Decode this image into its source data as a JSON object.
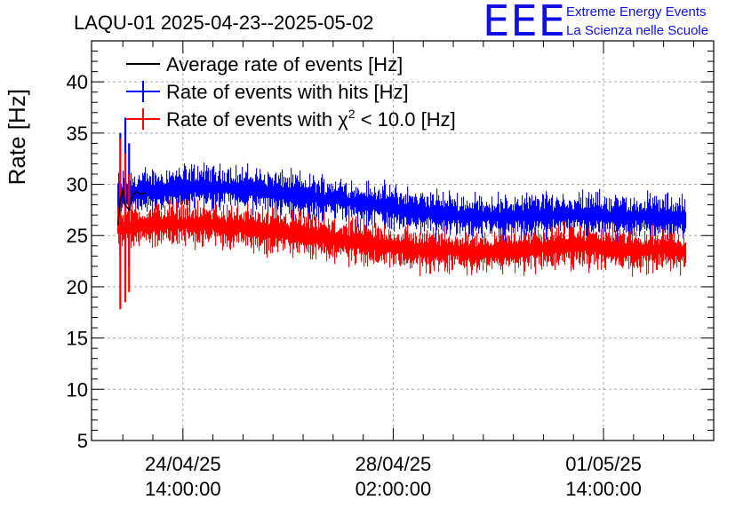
{
  "chart_data": {
    "type": "line",
    "title": "LAQU-01 2025-04-23--2025-05-02",
    "ylabel": "Rate [Hz]",
    "xlabel": "",
    "ylim": [
      5,
      44
    ],
    "yticks": [
      5,
      10,
      15,
      20,
      25,
      30,
      35,
      40
    ],
    "xlim": [
      "2025-04-23T01:30:00",
      "2025-05-03T10:00:00"
    ],
    "xticks": [
      {
        "x": "2025-04-24T14:00:00",
        "date": "24/04/25",
        "time": "14:00:00"
      },
      {
        "x": "2025-04-28T02:00:00",
        "date": "28/04/25",
        "time": "02:00:00"
      },
      {
        "x": "2025-05-01T14:00:00",
        "date": "01/05/25",
        "time": "14:00:00"
      }
    ],
    "grid": true,
    "legend_position": "top-left",
    "logo": {
      "mark": "EEE",
      "line1": "Extreme Energy Events",
      "line2": "La Scienza nelle Scuole"
    },
    "series": [
      {
        "name": "Average rate of events [Hz]",
        "color": "#000000",
        "x": [
          "2025-04-23T12:00:00",
          "2025-04-23T13:00:00",
          "2025-04-23T14:00:00",
          "2025-04-23T15:00:00",
          "2025-04-23T16:30:00",
          "2025-04-23T18:00:00",
          "2025-04-23T19:30:00",
          "2025-04-23T21:00:00",
          "2025-04-23T23:00:00"
        ],
        "values": [
          26,
          28.5,
          29.5,
          28.0,
          27.5,
          29.0,
          29.3,
          29.0,
          29.2
        ]
      },
      {
        "name": "Rate of events with hits [Hz]",
        "color": "#0000ff",
        "x": [
          "2025-04-23T12:00:00",
          "2025-04-24T00:00:00",
          "2025-04-24T12:00:00",
          "2025-04-25T00:00:00",
          "2025-04-25T12:00:00",
          "2025-04-26T00:00:00",
          "2025-04-26T12:00:00",
          "2025-04-27T00:00:00",
          "2025-04-27T12:00:00",
          "2025-04-28T00:00:00",
          "2025-04-28T12:00:00",
          "2025-04-29T00:00:00",
          "2025-04-29T12:00:00",
          "2025-04-30T00:00:00",
          "2025-04-30T12:00:00",
          "2025-05-01T00:00:00",
          "2025-05-01T12:00:00",
          "2025-05-02T00:00:00",
          "2025-05-02T12:00:00",
          "2025-05-02T23:00:00"
        ],
        "values": [
          29.0,
          29.3,
          29.7,
          29.8,
          29.6,
          29.3,
          29.0,
          28.6,
          28.2,
          27.8,
          27.3,
          27.0,
          26.9,
          26.8,
          27.0,
          27.1,
          27.0,
          26.8,
          26.9,
          26.6
        ],
        "noise": 1.4,
        "spikes": [
          {
            "x": "2025-04-23T13:00:00",
            "min": 23.0,
            "max": 35.0
          },
          {
            "x": "2025-04-23T15:00:00",
            "min": 21.5,
            "max": 36.5
          },
          {
            "x": "2025-04-23T16:30:00",
            "min": 22.0,
            "max": 34.0
          }
        ]
      },
      {
        "name": "Rate of events with χ² < 10.0 [Hz]",
        "name_main": "Rate of events with ",
        "name_chi": "χ",
        "name_sup": "2",
        "name_tail": " < 10.0 [Hz]",
        "color": "#ff0000",
        "x": [
          "2025-04-23T12:00:00",
          "2025-04-24T00:00:00",
          "2025-04-24T12:00:00",
          "2025-04-25T00:00:00",
          "2025-04-25T12:00:00",
          "2025-04-26T00:00:00",
          "2025-04-26T12:00:00",
          "2025-04-27T00:00:00",
          "2025-04-27T12:00:00",
          "2025-04-28T00:00:00",
          "2025-04-28T12:00:00",
          "2025-04-29T00:00:00",
          "2025-04-29T12:00:00",
          "2025-04-30T00:00:00",
          "2025-04-30T12:00:00",
          "2025-05-01T00:00:00",
          "2025-05-01T12:00:00",
          "2025-05-02T00:00:00",
          "2025-05-02T12:00:00",
          "2025-05-02T23:00:00"
        ],
        "values": [
          25.8,
          26.0,
          26.2,
          26.1,
          25.8,
          25.5,
          25.1,
          24.7,
          24.3,
          23.9,
          23.6,
          23.5,
          23.4,
          23.5,
          23.8,
          24.0,
          23.9,
          23.6,
          23.7,
          23.3
        ],
        "noise": 1.4,
        "spikes": [
          {
            "x": "2025-04-23T13:00:00",
            "min": 17.8,
            "max": 34.5
          },
          {
            "x": "2025-04-23T15:00:00",
            "min": 18.5,
            "max": 33.0
          },
          {
            "x": "2025-04-23T16:30:00",
            "min": 19.5,
            "max": 31.0
          }
        ]
      }
    ]
  }
}
